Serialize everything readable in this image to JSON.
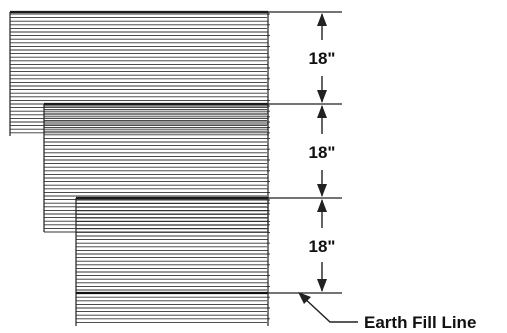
{
  "dimensions": [
    {
      "label": "18\""
    },
    {
      "label": "18\""
    },
    {
      "label": "18\""
    }
  ],
  "callout": {
    "label": "Earth Fill Line"
  },
  "colors": {
    "line": "#222222",
    "background": "#ffffff"
  }
}
